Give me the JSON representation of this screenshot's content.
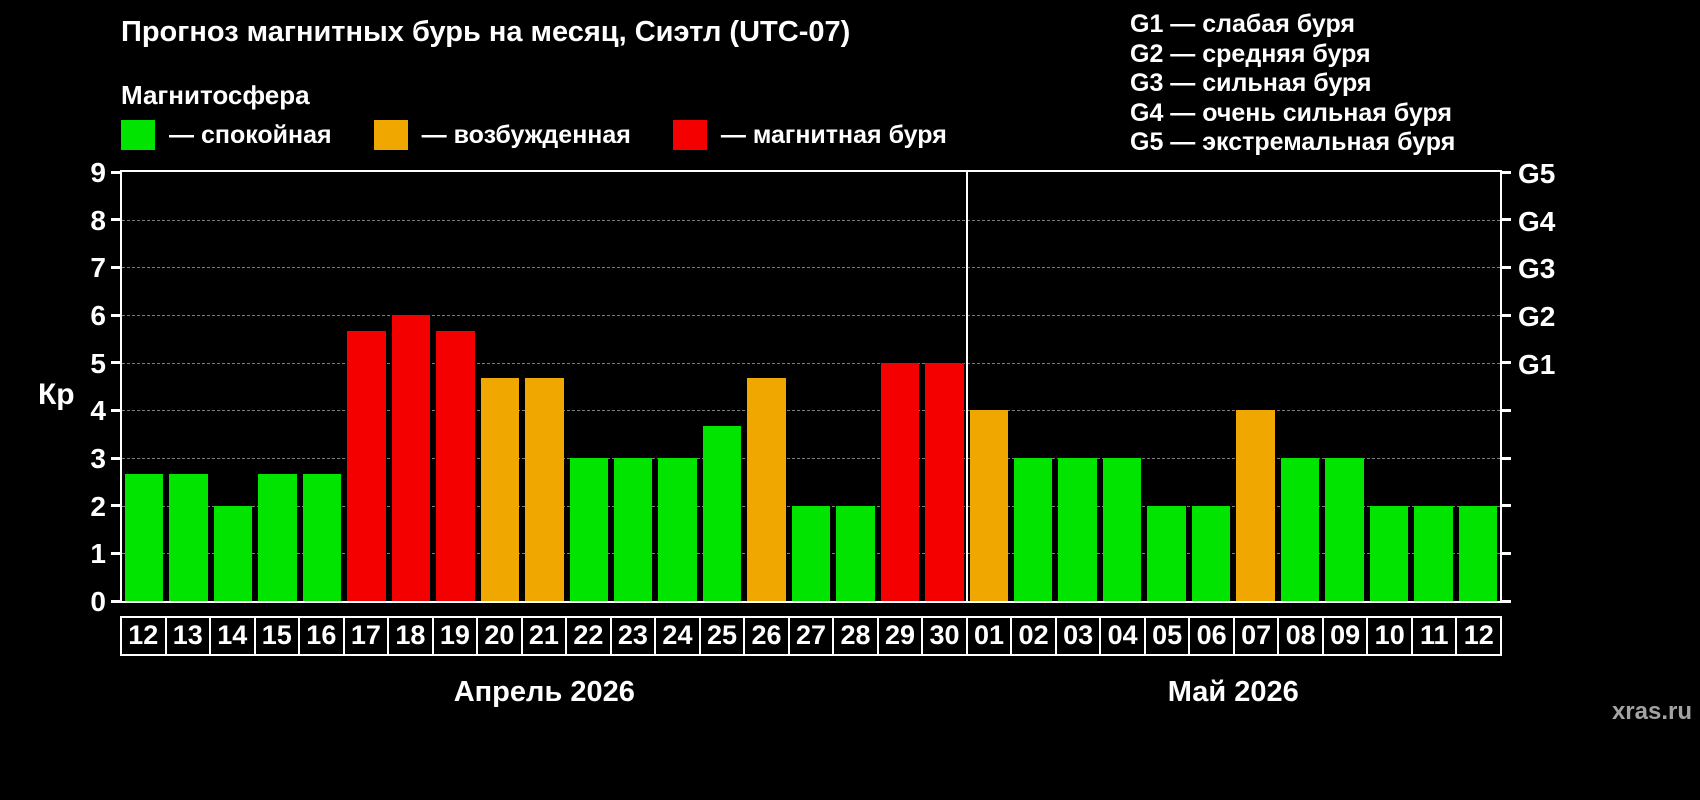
{
  "header": {
    "title": "Прогноз магнитных бурь на месяц, Сиэтл (UTC-07)",
    "subtitle": "Магнитосфера"
  },
  "legend": [
    {
      "key": "quiet",
      "color": "#00e400",
      "label": "— спокойная"
    },
    {
      "key": "excited",
      "color": "#f0a800",
      "label": "— возбужденная"
    },
    {
      "key": "storm",
      "color": "#f40000",
      "label": "— магнитная буря"
    }
  ],
  "storm_scale": [
    "G1 — слабая буря",
    "G2 — средняя буря",
    "G3 — сильная буря",
    "G4 — очень сильная буря",
    "G5 — экстремальная буря"
  ],
  "axis": {
    "ylabel": "Кр"
  },
  "watermark": "xras.ru",
  "chart_data": {
    "type": "bar",
    "title": "Прогноз магнитных бурь на месяц, Сиэтл (UTC-07)",
    "ylabel": "Кр",
    "ylim": [
      0,
      9
    ],
    "yticks": [
      0,
      1,
      2,
      3,
      4,
      5,
      6,
      7,
      8,
      9
    ],
    "grid": "dashed-horizontal",
    "legend_position": "top-left",
    "right_axis_ticks": [
      {
        "value": 5,
        "label": "G1"
      },
      {
        "value": 6,
        "label": "G2"
      },
      {
        "value": 7,
        "label": "G3"
      },
      {
        "value": 8,
        "label": "G4"
      },
      {
        "value": 9,
        "label": "G5"
      }
    ],
    "months": [
      {
        "label": "Апрель 2026",
        "days": [
          {
            "day": "12",
            "kp": 2.67,
            "state": "quiet"
          },
          {
            "day": "13",
            "kp": 2.67,
            "state": "quiet"
          },
          {
            "day": "14",
            "kp": 2.0,
            "state": "quiet"
          },
          {
            "day": "15",
            "kp": 2.67,
            "state": "quiet"
          },
          {
            "day": "16",
            "kp": 2.67,
            "state": "quiet"
          },
          {
            "day": "17",
            "kp": 5.67,
            "state": "storm"
          },
          {
            "day": "18",
            "kp": 6.0,
            "state": "storm"
          },
          {
            "day": "19",
            "kp": 5.67,
            "state": "storm"
          },
          {
            "day": "20",
            "kp": 4.67,
            "state": "excited"
          },
          {
            "day": "21",
            "kp": 4.67,
            "state": "excited"
          },
          {
            "day": "22",
            "kp": 3.0,
            "state": "quiet"
          },
          {
            "day": "23",
            "kp": 3.0,
            "state": "quiet"
          },
          {
            "day": "24",
            "kp": 3.0,
            "state": "quiet"
          },
          {
            "day": "25",
            "kp": 3.67,
            "state": "quiet"
          },
          {
            "day": "26",
            "kp": 4.67,
            "state": "excited"
          },
          {
            "day": "27",
            "kp": 2.0,
            "state": "quiet"
          },
          {
            "day": "28",
            "kp": 2.0,
            "state": "quiet"
          },
          {
            "day": "29",
            "kp": 5.0,
            "state": "storm"
          },
          {
            "day": "30",
            "kp": 5.0,
            "state": "storm"
          }
        ]
      },
      {
        "label": "Май 2026",
        "days": [
          {
            "day": "01",
            "kp": 4.0,
            "state": "excited"
          },
          {
            "day": "02",
            "kp": 3.0,
            "state": "quiet"
          },
          {
            "day": "03",
            "kp": 3.0,
            "state": "quiet"
          },
          {
            "day": "04",
            "kp": 3.0,
            "state": "quiet"
          },
          {
            "day": "05",
            "kp": 2.0,
            "state": "quiet"
          },
          {
            "day": "06",
            "kp": 2.0,
            "state": "quiet"
          },
          {
            "day": "07",
            "kp": 4.0,
            "state": "excited"
          },
          {
            "day": "08",
            "kp": 3.0,
            "state": "quiet"
          },
          {
            "day": "09",
            "kp": 3.0,
            "state": "quiet"
          },
          {
            "day": "10",
            "kp": 2.0,
            "state": "quiet"
          },
          {
            "day": "11",
            "kp": 2.0,
            "state": "quiet"
          },
          {
            "day": "12",
            "kp": 2.0,
            "state": "quiet"
          }
        ]
      }
    ]
  }
}
